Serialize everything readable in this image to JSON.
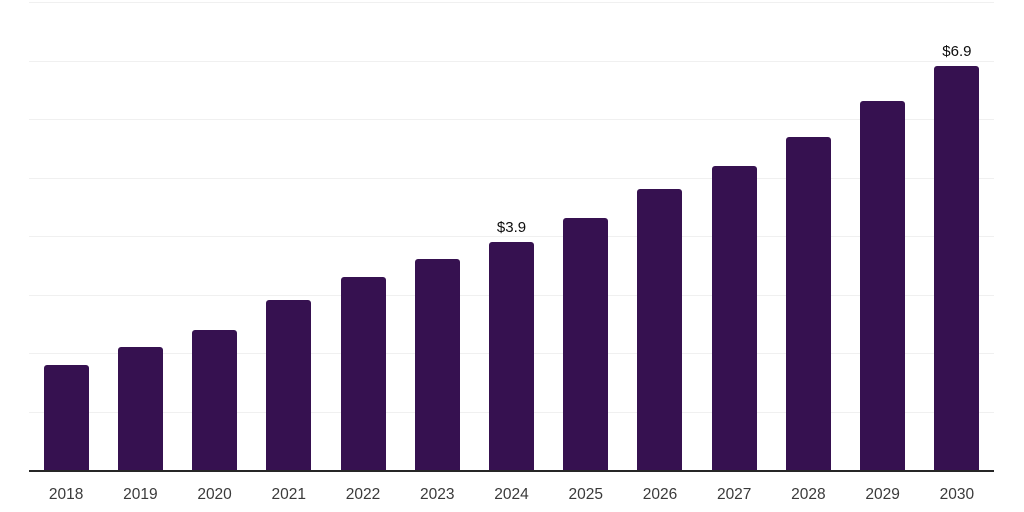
{
  "chart_data": {
    "type": "bar",
    "title": "",
    "xlabel": "",
    "ylabel": "",
    "categories": [
      "2018",
      "2019",
      "2020",
      "2021",
      "2022",
      "2023",
      "2024",
      "2025",
      "2026",
      "2027",
      "2028",
      "2029",
      "2030"
    ],
    "values": [
      1.8,
      2.1,
      2.4,
      2.9,
      3.3,
      3.6,
      3.9,
      4.3,
      4.8,
      5.2,
      5.7,
      6.3,
      6.9
    ],
    "data_labels": [
      "",
      "",
      "",
      "",
      "",
      "",
      "$3.9",
      "",
      "",
      "",
      "",
      "",
      "$6.9"
    ],
    "ylim": [
      0,
      8
    ],
    "grid_step": 1,
    "grid": true,
    "legend": false,
    "colors": {
      "bar": "#361150",
      "gridline": "#f0f0f0",
      "axis_line": "#262626",
      "tick_label": "#3a3a3a",
      "data_label": "#0d0d0d",
      "background": "#ffffff"
    }
  }
}
